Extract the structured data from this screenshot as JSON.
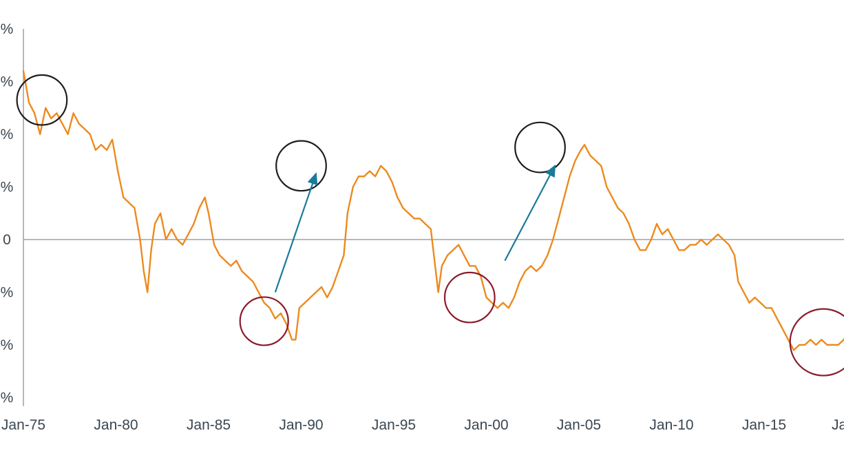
{
  "chart_data": {
    "type": "line",
    "title": "",
    "xlabel": "",
    "ylabel": "",
    "ylim": [
      -3,
      4
    ],
    "xlim": [
      1975,
      2020.3
    ],
    "x_ticks": [
      {
        "value": 1975,
        "label": "Jan-75"
      },
      {
        "value": 1980,
        "label": "Jan-80"
      },
      {
        "value": 1985,
        "label": "Jan-85"
      },
      {
        "value": 1990,
        "label": "Jan-90"
      },
      {
        "value": 1995,
        "label": "Jan-95"
      },
      {
        "value": 2000,
        "label": "Jan-00"
      },
      {
        "value": 2005,
        "label": "Jan-05"
      },
      {
        "value": 2010,
        "label": "Jan-10"
      },
      {
        "value": 2015,
        "label": "Jan-15"
      },
      {
        "value": 2020,
        "label": "Ja"
      }
    ],
    "y_ticks": [
      {
        "value": 4,
        "label": "%"
      },
      {
        "value": 3,
        "label": "%"
      },
      {
        "value": 2,
        "label": "%"
      },
      {
        "value": 1,
        "label": "%"
      },
      {
        "value": 0,
        "label": "0"
      },
      {
        "value": -1,
        "label": "%"
      },
      {
        "value": -2,
        "label": "%"
      },
      {
        "value": -3,
        "label": "%"
      }
    ],
    "zero_line": true,
    "grid": false,
    "line_color": "#ec8a1e",
    "series": [
      {
        "name": "",
        "color": "#ec8a1e",
        "points": [
          [
            1975.0,
            3.2
          ],
          [
            1975.3,
            2.6
          ],
          [
            1975.6,
            2.4
          ],
          [
            1975.9,
            2.0
          ],
          [
            1976.2,
            2.5
          ],
          [
            1976.5,
            2.3
          ],
          [
            1976.8,
            2.4
          ],
          [
            1977.1,
            2.2
          ],
          [
            1977.4,
            2.0
          ],
          [
            1977.7,
            2.4
          ],
          [
            1978.0,
            2.2
          ],
          [
            1978.3,
            2.1
          ],
          [
            1978.6,
            2.0
          ],
          [
            1978.9,
            1.7
          ],
          [
            1979.2,
            1.8
          ],
          [
            1979.5,
            1.7
          ],
          [
            1979.8,
            1.9
          ],
          [
            1980.1,
            1.3
          ],
          [
            1980.4,
            0.8
          ],
          [
            1980.7,
            0.7
          ],
          [
            1981.0,
            0.6
          ],
          [
            1981.3,
            0.0
          ],
          [
            1981.5,
            -0.6
          ],
          [
            1981.7,
            -1.0
          ],
          [
            1981.9,
            -0.2
          ],
          [
            1982.1,
            0.3
          ],
          [
            1982.4,
            0.5
          ],
          [
            1982.7,
            0.0
          ],
          [
            1983.0,
            0.2
          ],
          [
            1983.3,
            0.0
          ],
          [
            1983.6,
            -0.1
          ],
          [
            1983.9,
            0.1
          ],
          [
            1984.2,
            0.3
          ],
          [
            1984.5,
            0.6
          ],
          [
            1984.8,
            0.8
          ],
          [
            1985.0,
            0.5
          ],
          [
            1985.3,
            -0.1
          ],
          [
            1985.6,
            -0.3
          ],
          [
            1985.9,
            -0.4
          ],
          [
            1986.2,
            -0.5
          ],
          [
            1986.5,
            -0.4
          ],
          [
            1986.8,
            -0.6
          ],
          [
            1987.1,
            -0.7
          ],
          [
            1987.4,
            -0.8
          ],
          [
            1987.7,
            -1.0
          ],
          [
            1988.0,
            -1.2
          ],
          [
            1988.3,
            -1.3
          ],
          [
            1988.6,
            -1.5
          ],
          [
            1988.9,
            -1.4
          ],
          [
            1989.2,
            -1.6
          ],
          [
            1989.5,
            -1.9
          ],
          [
            1989.7,
            -1.9
          ],
          [
            1989.9,
            -1.3
          ],
          [
            1990.2,
            -1.2
          ],
          [
            1990.5,
            -1.1
          ],
          [
            1990.8,
            -1.0
          ],
          [
            1991.1,
            -0.9
          ],
          [
            1991.4,
            -1.1
          ],
          [
            1991.7,
            -0.9
          ],
          [
            1992.0,
            -0.6
          ],
          [
            1992.3,
            -0.3
          ],
          [
            1992.5,
            0.5
          ],
          [
            1992.8,
            1.0
          ],
          [
            1993.1,
            1.2
          ],
          [
            1993.4,
            1.2
          ],
          [
            1993.7,
            1.3
          ],
          [
            1994.0,
            1.2
          ],
          [
            1994.3,
            1.4
          ],
          [
            1994.6,
            1.3
          ],
          [
            1994.9,
            1.1
          ],
          [
            1995.2,
            0.8
          ],
          [
            1995.5,
            0.6
          ],
          [
            1995.8,
            0.5
          ],
          [
            1996.1,
            0.4
          ],
          [
            1996.4,
            0.4
          ],
          [
            1996.7,
            0.3
          ],
          [
            1997.0,
            0.2
          ],
          [
            1997.2,
            -0.4
          ],
          [
            1997.4,
            -1.0
          ],
          [
            1997.6,
            -0.5
          ],
          [
            1997.9,
            -0.3
          ],
          [
            1998.2,
            -0.2
          ],
          [
            1998.5,
            -0.1
          ],
          [
            1998.8,
            -0.3
          ],
          [
            1999.1,
            -0.5
          ],
          [
            1999.4,
            -0.5
          ],
          [
            1999.7,
            -0.7
          ],
          [
            2000.0,
            -1.1
          ],
          [
            2000.3,
            -1.2
          ],
          [
            2000.6,
            -1.3
          ],
          [
            2000.9,
            -1.2
          ],
          [
            2001.2,
            -1.3
          ],
          [
            2001.5,
            -1.1
          ],
          [
            2001.8,
            -0.8
          ],
          [
            2002.1,
            -0.6
          ],
          [
            2002.4,
            -0.5
          ],
          [
            2002.7,
            -0.6
          ],
          [
            2003.0,
            -0.5
          ],
          [
            2003.3,
            -0.3
          ],
          [
            2003.6,
            0.0
          ],
          [
            2003.9,
            0.4
          ],
          [
            2004.2,
            0.8
          ],
          [
            2004.5,
            1.2
          ],
          [
            2004.8,
            1.5
          ],
          [
            2005.1,
            1.7
          ],
          [
            2005.3,
            1.8
          ],
          [
            2005.6,
            1.6
          ],
          [
            2005.9,
            1.5
          ],
          [
            2006.2,
            1.4
          ],
          [
            2006.5,
            1.0
          ],
          [
            2006.8,
            0.8
          ],
          [
            2007.1,
            0.6
          ],
          [
            2007.4,
            0.5
          ],
          [
            2007.7,
            0.3
          ],
          [
            2008.0,
            0.0
          ],
          [
            2008.3,
            -0.2
          ],
          [
            2008.6,
            -0.2
          ],
          [
            2008.9,
            0.0
          ],
          [
            2009.2,
            0.3
          ],
          [
            2009.5,
            0.1
          ],
          [
            2009.8,
            0.2
          ],
          [
            2010.1,
            0.0
          ],
          [
            2010.4,
            -0.2
          ],
          [
            2010.7,
            -0.2
          ],
          [
            2011.0,
            -0.1
          ],
          [
            2011.3,
            -0.1
          ],
          [
            2011.6,
            0.0
          ],
          [
            2011.9,
            -0.1
          ],
          [
            2012.2,
            0.0
          ],
          [
            2012.5,
            0.1
          ],
          [
            2012.8,
            0.0
          ],
          [
            2013.1,
            -0.1
          ],
          [
            2013.4,
            -0.3
          ],
          [
            2013.6,
            -0.8
          ],
          [
            2013.9,
            -1.0
          ],
          [
            2014.2,
            -1.2
          ],
          [
            2014.5,
            -1.1
          ],
          [
            2014.8,
            -1.2
          ],
          [
            2015.1,
            -1.3
          ],
          [
            2015.4,
            -1.3
          ],
          [
            2015.7,
            -1.5
          ],
          [
            2016.0,
            -1.7
          ],
          [
            2016.3,
            -1.9
          ],
          [
            2016.6,
            -2.1
          ],
          [
            2016.9,
            -2.0
          ],
          [
            2017.2,
            -2.0
          ],
          [
            2017.5,
            -1.9
          ],
          [
            2017.8,
            -2.0
          ],
          [
            2018.1,
            -1.9
          ],
          [
            2018.4,
            -2.0
          ],
          [
            2018.7,
            -2.0
          ],
          [
            2019.0,
            -2.0
          ],
          [
            2019.3,
            -1.9
          ],
          [
            2019.6,
            -1.7
          ],
          [
            2019.9,
            -1.4
          ],
          [
            2020.1,
            -1.4
          ],
          [
            2020.3,
            -1.5
          ]
        ]
      }
    ],
    "annotations": [
      {
        "type": "circle",
        "kind": "peak",
        "color": "#1e1e1e",
        "x": 1976.0,
        "y": 2.65,
        "r_x_years": 1.35
      },
      {
        "type": "circle",
        "kind": "trough",
        "color": "#8a1c2c",
        "x": 1988.0,
        "y": -1.55,
        "r_x_years": 1.3
      },
      {
        "type": "circle",
        "kind": "peak",
        "color": "#1e1e1e",
        "x": 1990.0,
        "y": 1.4,
        "r_x_years": 1.35
      },
      {
        "type": "circle",
        "kind": "trough",
        "color": "#8a1c2c",
        "x": 1999.1,
        "y": -1.1,
        "r_x_years": 1.35
      },
      {
        "type": "circle",
        "kind": "peak",
        "color": "#1e1e1e",
        "x": 2002.9,
        "y": 1.75,
        "r_x_years": 1.35
      },
      {
        "type": "circle",
        "kind": "trough",
        "color": "#8a1c2c",
        "x": 2018.2,
        "y": -1.95,
        "r_x_years": 1.8
      },
      {
        "type": "arrow",
        "color": "#1a7a9a",
        "from": [
          1988.6,
          -1.0
        ],
        "to": [
          1990.8,
          1.25
        ]
      },
      {
        "type": "arrow",
        "color": "#1a7a9a",
        "from": [
          2001.0,
          -0.4
        ],
        "to": [
          2003.7,
          1.4
        ]
      },
      {
        "type": "arrow",
        "color": "#1a7a9a",
        "from": [
          2019.8,
          -1.3
        ],
        "to": [
          2021.5,
          -0.2
        ]
      }
    ]
  }
}
